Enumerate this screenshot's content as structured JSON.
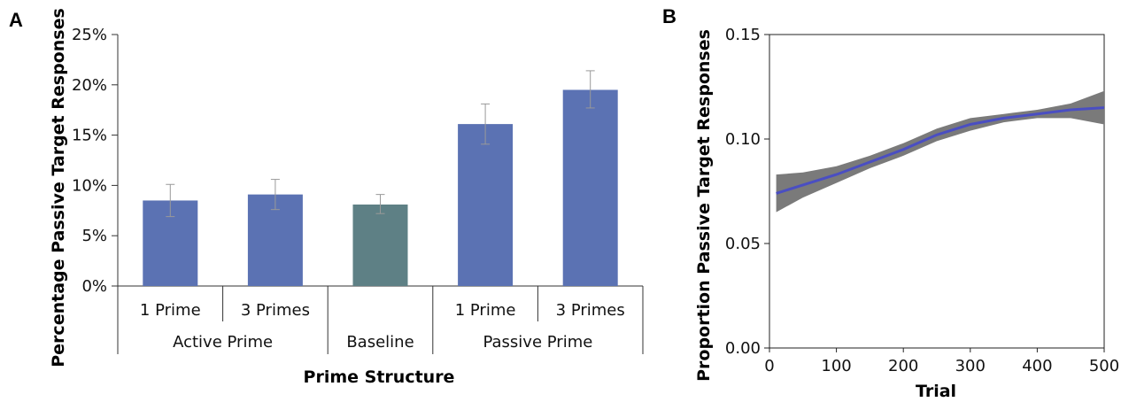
{
  "panels": {
    "a": {
      "label": "A"
    },
    "b": {
      "label": "B"
    }
  },
  "chart_data": [
    {
      "type": "bar",
      "title": "",
      "xlabel": "Prime Structure",
      "ylabel": "Percentage Passive Target Responses",
      "ylim": [
        0,
        25
      ],
      "y_ticks": [
        "0%",
        "5%",
        "10%",
        "15%",
        "20%",
        "25%"
      ],
      "y_tick_values": [
        0,
        5,
        10,
        15,
        20,
        25
      ],
      "grid": false,
      "categories": [
        "1 Prime",
        "3 Primes",
        "",
        "1 Prime",
        "3 Primes"
      ],
      "groups": [
        "Active Prime",
        "Baseline",
        "Passive Prime"
      ],
      "values": [
        8.5,
        9.1,
        8.1,
        16.1,
        19.5
      ],
      "error_low": [
        6.9,
        7.6,
        7.2,
        14.1,
        17.7
      ],
      "error_high": [
        10.1,
        10.6,
        9.1,
        18.1,
        21.4
      ],
      "colors": [
        "#5b72b3",
        "#5b72b3",
        "#5e8085",
        "#5b72b3",
        "#5b72b3"
      ]
    },
    {
      "type": "line",
      "title": "",
      "xlabel": "Trial",
      "ylabel": "Proportion Passive Target Responses",
      "xlim": [
        0,
        500
      ],
      "ylim": [
        0,
        0.15
      ],
      "x_ticks": [
        "0",
        "100",
        "200",
        "300",
        "400",
        "500"
      ],
      "x_tick_values": [
        0,
        100,
        200,
        300,
        400,
        500
      ],
      "y_ticks": [
        "0.00",
        "0.05",
        "0.10",
        "0.15"
      ],
      "y_tick_values": [
        0,
        0.05,
        0.1,
        0.15
      ],
      "grid": false,
      "series": [
        {
          "x": [
            10,
            50,
            100,
            150,
            200,
            250,
            300,
            350,
            400,
            450,
            500
          ],
          "y": [
            0.074,
            0.078,
            0.083,
            0.089,
            0.095,
            0.102,
            0.107,
            0.11,
            0.112,
            0.114,
            0.115
          ],
          "ci_low": [
            0.065,
            0.072,
            0.079,
            0.086,
            0.092,
            0.099,
            0.104,
            0.108,
            0.11,
            0.11,
            0.107
          ],
          "ci_high": [
            0.083,
            0.084,
            0.087,
            0.092,
            0.098,
            0.105,
            0.11,
            0.112,
            0.114,
            0.117,
            0.123
          ],
          "color": "#4a4ec2",
          "band_color": "#7a7a7a"
        }
      ]
    }
  ]
}
